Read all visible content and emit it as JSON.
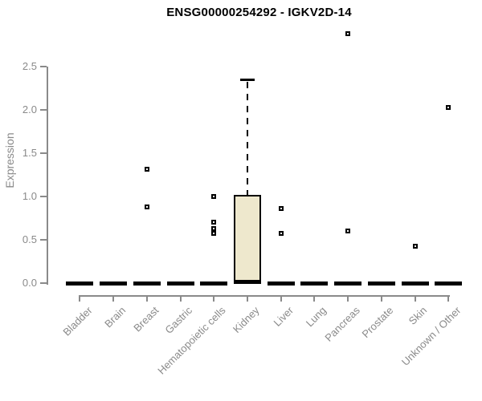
{
  "chart_data": {
    "type": "box",
    "title": "ENSG00000254292 - IGKV2D-14",
    "ylabel": "Expression",
    "xlabel": "",
    "y_ticks": [
      0,
      0.5,
      1,
      1.5,
      2,
      2.5
    ],
    "y_tick_labels": [
      "0.0",
      "0.5",
      "1.0",
      "1.5",
      "2.0",
      "2.5"
    ],
    "ylim": [
      0,
      2.9
    ],
    "grid": false,
    "legend": "none",
    "categories": [
      "Bladder",
      "Brain",
      "Breast",
      "Gastric",
      "Hematopoietic cells",
      "Kidney",
      "Liver",
      "Lung",
      "Pancreas",
      "Prostate",
      "Skin",
      "Unknown / Other"
    ],
    "boxes": [
      {
        "category": "Bladder",
        "q1": 0,
        "median": 0,
        "q3": 0,
        "whisker_low": 0,
        "whisker_high": 0,
        "outliers": []
      },
      {
        "category": "Brain",
        "q1": 0,
        "median": 0,
        "q3": 0,
        "whisker_low": 0,
        "whisker_high": 0,
        "outliers": []
      },
      {
        "category": "Breast",
        "q1": 0,
        "median": 0,
        "q3": 0,
        "whisker_low": 0,
        "whisker_high": 0,
        "outliers": [
          1.32,
          0.88
        ]
      },
      {
        "category": "Gastric",
        "q1": 0,
        "median": 0,
        "q3": 0,
        "whisker_low": 0,
        "whisker_high": 0,
        "outliers": []
      },
      {
        "category": "Hematopoietic cells",
        "q1": 0,
        "median": 0,
        "q3": 0,
        "whisker_low": 0,
        "whisker_high": 0,
        "outliers": [
          1.0,
          0.71,
          0.63,
          0.58
        ]
      },
      {
        "category": "Kidney",
        "q1": 0,
        "median": 0.02,
        "q3": 1.02,
        "whisker_low": 0,
        "whisker_high": 2.35,
        "outliers": []
      },
      {
        "category": "Liver",
        "q1": 0,
        "median": 0,
        "q3": 0,
        "whisker_low": 0,
        "whisker_high": 0,
        "outliers": [
          0.86,
          0.58
        ]
      },
      {
        "category": "Lung",
        "q1": 0,
        "median": 0,
        "q3": 0,
        "whisker_low": 0,
        "whisker_high": 0,
        "outliers": []
      },
      {
        "category": "Pancreas",
        "q1": 0,
        "median": 0,
        "q3": 0,
        "whisker_low": 0,
        "whisker_high": 0,
        "outliers": [
          2.88,
          0.6
        ]
      },
      {
        "category": "Prostate",
        "q1": 0,
        "median": 0,
        "q3": 0,
        "whisker_low": 0,
        "whisker_high": 0,
        "outliers": []
      },
      {
        "category": "Skin",
        "q1": 0,
        "median": 0,
        "q3": 0,
        "whisker_low": 0,
        "whisker_high": 0,
        "outliers": [
          0.43
        ]
      },
      {
        "category": "Unknown / Other",
        "q1": 0,
        "median": 0,
        "q3": 0,
        "whisker_low": 0,
        "whisker_high": 0,
        "outliers": [
          2.03
        ]
      }
    ],
    "colors": {
      "box_fill": "#EEE8CD",
      "box_border": "#000000",
      "median": "#000000",
      "whisker": "#000000",
      "outlier": "#000000",
      "axis": "#8A8A8A",
      "title": "#000000"
    }
  }
}
